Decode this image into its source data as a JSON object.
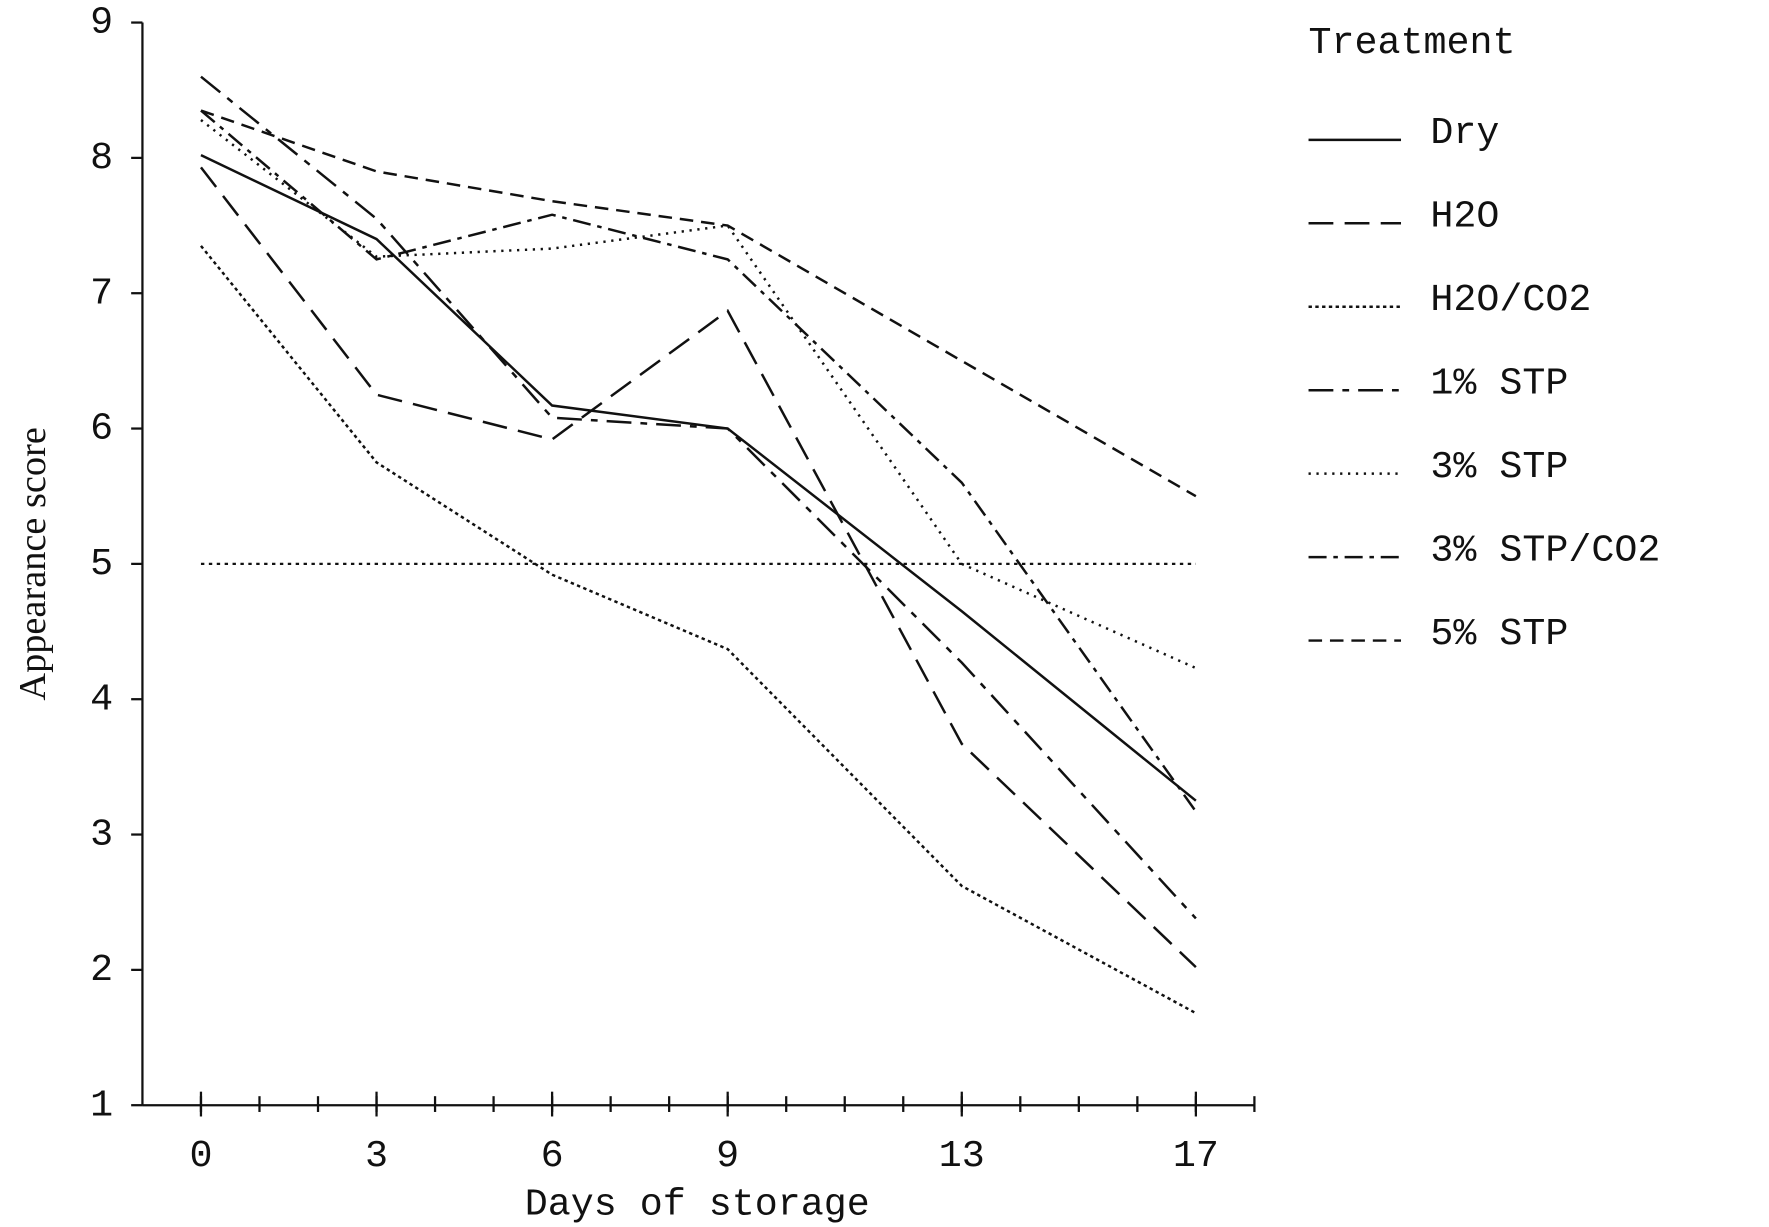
{
  "chart_data": {
    "type": "line",
    "x_label": "Days of storage",
    "y_label": "Appearance score",
    "legend_title": "Treatment",
    "x": [
      0,
      3,
      6,
      9,
      13,
      17
    ],
    "xlim": [
      -1,
      18
    ],
    "xticks": [
      0,
      3,
      6,
      9,
      13,
      17
    ],
    "xminorticks": [
      0,
      1,
      2,
      3,
      4,
      5,
      6,
      7,
      8,
      9,
      10,
      11,
      12,
      13,
      14,
      15,
      16,
      17,
      18
    ],
    "ylim": [
      1,
      9
    ],
    "yticks": [
      1,
      2,
      3,
      4,
      5,
      6,
      7,
      8,
      9
    ],
    "reference_line": {
      "value": 5,
      "dash": "3 4"
    },
    "series": [
      {
        "name": "Dry",
        "color": "#111111",
        "dash": "",
        "values": [
          8.02,
          7.4,
          6.17,
          6.0,
          4.65,
          3.25
        ]
      },
      {
        "name": "H2O",
        "color": "#111111",
        "dash": "22 10",
        "values": [
          7.93,
          6.25,
          5.92,
          6.87,
          3.67,
          2.02
        ]
      },
      {
        "name": "H2O/CO2",
        "color": "#111111",
        "dash": "3 3",
        "values": [
          7.35,
          5.75,
          4.92,
          4.37,
          2.62,
          1.68
        ]
      },
      {
        "name": "1% STP",
        "color": "#111111",
        "dash": "22 8 6 8",
        "values": [
          8.6,
          7.55,
          6.08,
          6.0,
          4.27,
          2.38
        ]
      },
      {
        "name": "3% STP",
        "color": "#111111",
        "dash": "2 5",
        "values": [
          8.28,
          7.27,
          7.33,
          7.5,
          5.0,
          4.23
        ]
      },
      {
        "name": "3% STP/CO2",
        "color": "#111111",
        "dash": "16 6 4 6",
        "values": [
          8.35,
          7.25,
          7.58,
          7.25,
          5.6,
          3.17
        ]
      },
      {
        "name": "5% STP",
        "color": "#111111",
        "dash": "12 7",
        "values": [
          8.35,
          7.9,
          7.68,
          7.5,
          6.5,
          5.5
        ]
      }
    ]
  }
}
